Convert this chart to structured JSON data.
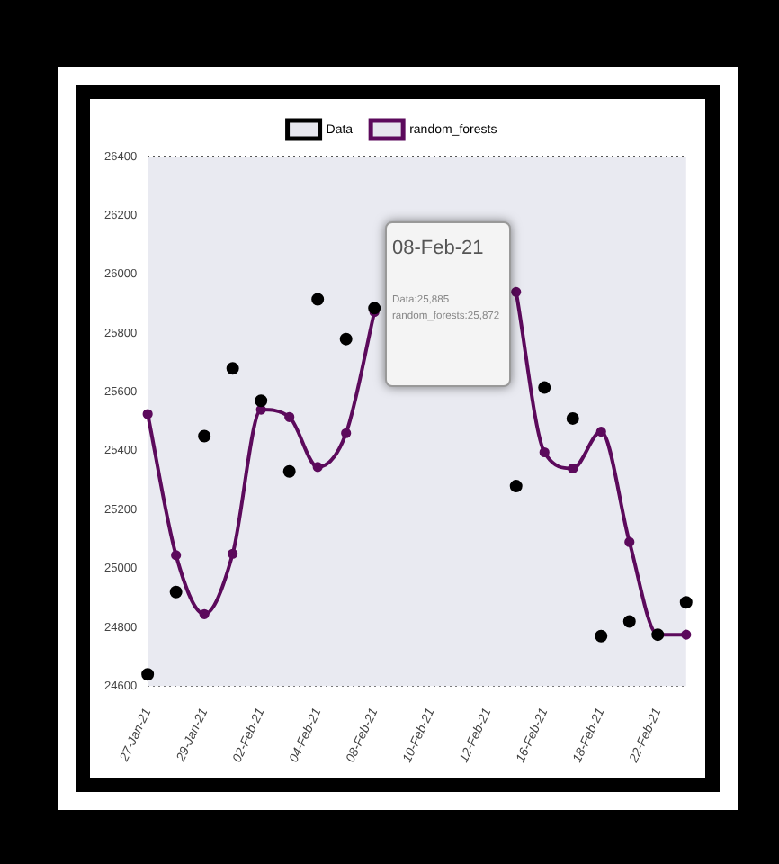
{
  "chart_data": {
    "type": "line",
    "categories": [
      "27-Jan-21",
      null,
      "29-Jan-21",
      null,
      "02-Feb-21",
      null,
      "04-Feb-21",
      null,
      "08-Feb-21",
      null,
      "10-Feb-21",
      null,
      "12-Feb-21",
      null,
      "16-Feb-21",
      null,
      "18-Feb-21",
      null,
      "22-Feb-21",
      null
    ],
    "series": [
      {
        "name": "Data",
        "type": "scatter",
        "color": "#000000",
        "values": [
          24640,
          24920,
          25450,
          25680,
          25570,
          25330,
          25915,
          25780,
          25885,
          null,
          null,
          null,
          null,
          25280,
          25615,
          25510,
          24770,
          24820,
          24775,
          24885
        ]
      },
      {
        "name": "random_forests",
        "color": "#5c0a5c",
        "values": [
          25525,
          25045,
          24845,
          25050,
          25540,
          25515,
          25345,
          25460,
          25872,
          null,
          null,
          null,
          null,
          25940,
          25395,
          25340,
          25465,
          25090,
          24775,
          24775
        ]
      }
    ],
    "ylim": [
      24600,
      26400
    ],
    "yticks": [
      24600,
      24800,
      25000,
      25200,
      25400,
      25600,
      25800,
      26000,
      26200,
      26400
    ],
    "grid": "y",
    "legend": "top",
    "marker": "circle",
    "line_style": "solid",
    "annotations": [
      "08-Feb-21",
      "Data:25,885",
      "random_forests:25,872"
    ]
  }
}
